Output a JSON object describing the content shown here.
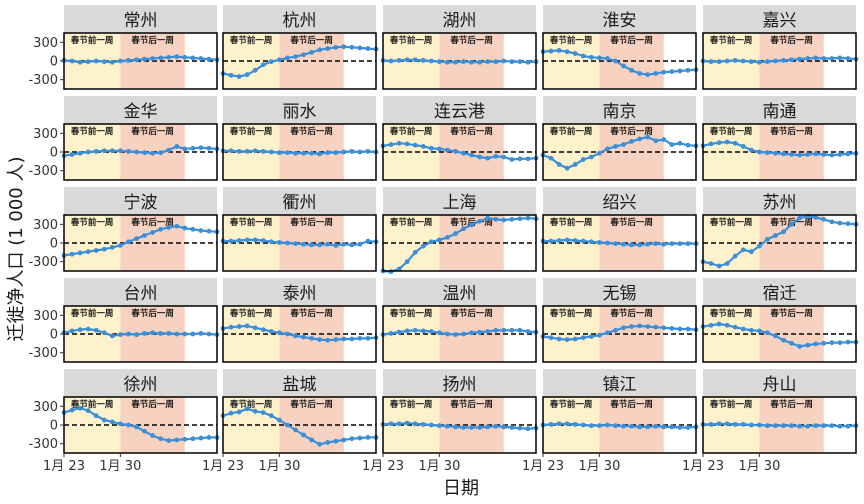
{
  "chart_data": {
    "type": "line",
    "facet_layout": "5 columns x 5 rows",
    "xlabel": "日期",
    "ylabel": "迁徙净人口 (1 000 人)",
    "x_ticks": [
      "1月 23",
      "1月 30"
    ],
    "x_range_days": [
      23,
      42
    ],
    "ylim": [
      -450,
      450
    ],
    "y_ticks": [
      -300,
      0,
      300
    ],
    "y_tick_labels": [
      "-300",
      "0",
      "300"
    ],
    "zero_line": "dashed",
    "periods": [
      {
        "label": "春节前一周",
        "start_day": 23,
        "end_day": 30,
        "color": "#fdf2cc"
      },
      {
        "label": "春节后一周",
        "start_day": 30,
        "end_day": 38,
        "color": "#f8d2c0"
      }
    ],
    "series_color": "#3b8fd9",
    "x": [
      23,
      24,
      25,
      26,
      27,
      28,
      29,
      30,
      31,
      32,
      33,
      34,
      35,
      36,
      37,
      38,
      39,
      40,
      41,
      42
    ],
    "panels": [
      {
        "name": "常州",
        "values": [
          10,
          0,
          -20,
          -10,
          0,
          -10,
          -20,
          0,
          10,
          20,
          30,
          40,
          50,
          60,
          70,
          60,
          50,
          40,
          30,
          20
        ]
      },
      {
        "name": "杭州",
        "values": [
          -200,
          -230,
          -250,
          -220,
          -150,
          -60,
          -10,
          20,
          50,
          70,
          100,
          140,
          180,
          200,
          220,
          230,
          220,
          210,
          200,
          190
        ]
      },
      {
        "name": "湖州",
        "values": [
          10,
          0,
          10,
          20,
          20,
          10,
          0,
          -10,
          -20,
          -20,
          -10,
          -20,
          -20,
          -10,
          -10,
          0,
          -10,
          -10,
          -20,
          -10
        ]
      },
      {
        "name": "淮安",
        "values": [
          150,
          160,
          170,
          150,
          120,
          80,
          60,
          50,
          40,
          0,
          -80,
          -150,
          -200,
          -220,
          -200,
          -180,
          -170,
          -160,
          -150,
          -140
        ]
      },
      {
        "name": "嘉兴",
        "values": [
          0,
          -10,
          -10,
          0,
          10,
          0,
          -10,
          -20,
          -10,
          0,
          10,
          20,
          30,
          40,
          50,
          40,
          40,
          50,
          40,
          30
        ]
      },
      {
        "name": "金华",
        "values": [
          -60,
          -40,
          -20,
          0,
          10,
          20,
          20,
          20,
          10,
          0,
          -10,
          -20,
          -10,
          30,
          90,
          50,
          60,
          70,
          60,
          50
        ]
      },
      {
        "name": "丽水",
        "values": [
          20,
          20,
          10,
          10,
          20,
          10,
          0,
          -10,
          -10,
          -20,
          -20,
          -20,
          -30,
          -10,
          -10,
          0,
          10,
          0,
          10,
          0
        ]
      },
      {
        "name": "连云港",
        "values": [
          100,
          120,
          140,
          130,
          110,
          90,
          60,
          50,
          30,
          10,
          -20,
          -50,
          -80,
          -100,
          -70,
          -80,
          -120,
          -110,
          -110,
          -100
        ]
      },
      {
        "name": "南京",
        "values": [
          -50,
          -100,
          -200,
          -260,
          -200,
          -120,
          -80,
          -20,
          50,
          90,
          120,
          170,
          210,
          240,
          180,
          200,
          120,
          140,
          110,
          100
        ]
      },
      {
        "name": "南通",
        "values": [
          100,
          130,
          150,
          160,
          140,
          90,
          30,
          0,
          -10,
          -20,
          -30,
          -40,
          -50,
          -40,
          -30,
          -40,
          -50,
          -40,
          -30,
          -20
        ]
      },
      {
        "name": "宁波",
        "values": [
          -200,
          -180,
          -160,
          -140,
          -120,
          -100,
          -70,
          -40,
          20,
          70,
          120,
          170,
          220,
          250,
          270,
          240,
          220,
          200,
          190,
          180
        ]
      },
      {
        "name": "衢州",
        "values": [
          30,
          30,
          40,
          50,
          50,
          40,
          20,
          10,
          0,
          -10,
          -20,
          -30,
          -30,
          -20,
          -40,
          -20,
          -30,
          -20,
          30,
          20
        ]
      },
      {
        "name": "上海",
        "values": [
          -450,
          -460,
          -420,
          -300,
          -150,
          -50,
          20,
          50,
          90,
          150,
          230,
          290,
          350,
          400,
          380,
          370,
          380,
          390,
          400,
          390
        ]
      },
      {
        "name": "绍兴",
        "values": [
          30,
          30,
          40,
          50,
          40,
          30,
          20,
          10,
          0,
          -10,
          -20,
          -30,
          -30,
          -20,
          -10,
          -20,
          -10,
          -10,
          -10,
          -10
        ]
      },
      {
        "name": "苏州",
        "values": [
          -300,
          -330,
          -370,
          -330,
          -210,
          -110,
          -140,
          -50,
          60,
          120,
          180,
          300,
          400,
          430,
          410,
          380,
          340,
          320,
          310,
          300
        ]
      },
      {
        "name": "台州",
        "values": [
          20,
          50,
          70,
          80,
          60,
          20,
          -30,
          -10,
          0,
          -10,
          10,
          20,
          10,
          10,
          0,
          0,
          0,
          10,
          0,
          -10
        ]
      },
      {
        "name": "泰州",
        "values": [
          90,
          110,
          120,
          130,
          100,
          70,
          40,
          20,
          0,
          -30,
          -50,
          -70,
          -90,
          -100,
          -90,
          -80,
          -80,
          -70,
          -70,
          -60
        ]
      },
      {
        "name": "温州",
        "values": [
          -10,
          10,
          30,
          50,
          60,
          50,
          40,
          20,
          0,
          -10,
          0,
          20,
          30,
          40,
          60,
          60,
          60,
          60,
          40,
          30
        ]
      },
      {
        "name": "无锡",
        "values": [
          -40,
          -60,
          -80,
          -90,
          -80,
          -60,
          -40,
          -20,
          20,
          60,
          100,
          120,
          130,
          120,
          110,
          100,
          90,
          80,
          80,
          70
        ]
      },
      {
        "name": "宿迁",
        "values": [
          120,
          140,
          160,
          140,
          110,
          80,
          60,
          50,
          20,
          -30,
          -100,
          -150,
          -200,
          -180,
          -160,
          -150,
          -140,
          -140,
          -130,
          -130
        ]
      },
      {
        "name": "徐州",
        "values": [
          200,
          240,
          270,
          230,
          150,
          80,
          50,
          20,
          0,
          -30,
          -100,
          -170,
          -220,
          -250,
          -240,
          -230,
          -220,
          -210,
          -200,
          -200
        ]
      },
      {
        "name": "盐城",
        "values": [
          150,
          190,
          210,
          260,
          220,
          200,
          150,
          80,
          0,
          -80,
          -160,
          -240,
          -310,
          -280,
          -260,
          -240,
          -220,
          -210,
          -200,
          -200
        ]
      },
      {
        "name": "扬州",
        "values": [
          10,
          20,
          20,
          30,
          20,
          10,
          0,
          -10,
          -20,
          -30,
          -40,
          -40,
          -40,
          -30,
          -20,
          -30,
          -40,
          -50,
          -60,
          -50
        ]
      },
      {
        "name": "镇江",
        "values": [
          0,
          10,
          20,
          20,
          10,
          0,
          -10,
          -10,
          0,
          -10,
          -20,
          -20,
          -30,
          -30,
          -20,
          -30,
          -30,
          -40,
          -40,
          -30
        ]
      },
      {
        "name": "舟山",
        "values": [
          10,
          10,
          20,
          20,
          10,
          10,
          0,
          0,
          -10,
          -10,
          -10,
          -10,
          -20,
          -20,
          -10,
          -10,
          -10,
          -20,
          -20,
          -10
        ]
      }
    ]
  }
}
